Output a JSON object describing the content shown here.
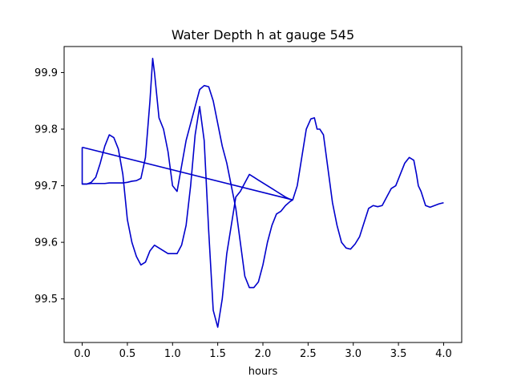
{
  "chart_data": {
    "type": "line",
    "title": "Water Depth h at gauge 545",
    "xlabel": "hours",
    "ylabel": "",
    "xlim": [
      -0.2,
      4.2
    ],
    "ylim": [
      99.423,
      99.946
    ],
    "xticks": [
      0.0,
      0.5,
      1.0,
      1.5,
      2.0,
      2.5,
      3.0,
      3.5,
      4.0
    ],
    "xtick_labels": [
      "0.0",
      "0.5",
      "1.0",
      "1.5",
      "2.0",
      "2.5",
      "3.0",
      "3.5",
      "4.0"
    ],
    "yticks": [
      99.5,
      99.6,
      99.7,
      99.8,
      99.9
    ],
    "ytick_labels": [
      "99.5",
      "99.6",
      "99.7",
      "99.8",
      "99.9"
    ],
    "grid": false,
    "legend": "none",
    "series_color": "#0000cc",
    "series": [
      {
        "segments": [
          {
            "x": [
              0.0,
              0.0,
              0.05,
              0.1,
              0.15,
              0.2,
              0.25,
              0.3,
              0.35,
              0.4,
              0.45,
              0.5,
              0.55,
              0.6,
              0.65,
              0.7,
              0.75,
              0.78,
              0.8,
              0.85,
              0.9,
              0.95,
              1.0,
              1.05,
              1.1,
              1.15,
              1.2,
              1.25,
              1.3,
              1.35,
              1.4,
              1.45,
              1.5,
              1.55,
              1.6,
              1.65,
              1.7,
              1.75,
              1.8,
              1.85,
              1.9,
              1.95,
              2.0,
              2.05,
              2.1,
              2.15,
              2.2,
              2.25,
              2.3,
              2.33,
              0.0
            ],
            "y": [
              99.768,
              99.703,
              99.703,
              99.704,
              99.704,
              99.704,
              99.704,
              99.705,
              99.705,
              99.705,
              99.705,
              99.706,
              99.708,
              99.709,
              99.713,
              99.75,
              99.85,
              99.925,
              99.9,
              99.82,
              99.8,
              99.76,
              99.7,
              99.69,
              99.735,
              99.78,
              99.81,
              99.84,
              99.87,
              99.877,
              99.875,
              99.85,
              99.81,
              99.77,
              99.74,
              99.7,
              99.66,
              99.6,
              99.54,
              99.52,
              99.52,
              99.53,
              99.56,
              99.6,
              99.63,
              99.65,
              99.655,
              99.665,
              99.672,
              99.675,
              99.768
            ]
          },
          {
            "x": [
              0.0,
              0.05,
              0.1,
              0.15,
              0.2,
              0.25,
              0.3,
              0.35,
              0.4,
              0.45,
              0.5,
              0.55,
              0.6,
              0.65,
              0.7,
              0.75,
              0.8,
              0.85,
              0.9,
              0.95,
              1.0,
              1.05,
              1.1,
              1.15,
              1.2,
              1.25,
              1.3,
              1.35,
              1.4,
              1.45,
              1.5,
              1.55,
              1.6,
              1.65,
              1.7,
              1.75,
              1.8,
              1.85,
              1.9,
              1.95,
              2.0,
              2.05,
              2.1,
              2.15,
              2.2,
              2.25,
              2.3,
              2.33
            ],
            "y": [
              99.703,
              99.703,
              99.706,
              99.715,
              99.74,
              99.77,
              99.79,
              99.785,
              99.765,
              99.72,
              99.64,
              99.6,
              99.575,
              99.56,
              99.565,
              99.585,
              99.595,
              99.59,
              99.585,
              99.58,
              99.58,
              99.58,
              99.595,
              99.63,
              99.7,
              99.79,
              99.84,
              99.78,
              99.62,
              99.48,
              99.45,
              99.5,
              99.58,
              99.63,
              99.68,
              99.69,
              99.705,
              99.72,
              99.715,
              99.71,
              99.705,
              99.7,
              99.695,
              99.69,
              99.685,
              99.68,
              99.676,
              99.675
            ]
          },
          {
            "x": [
              2.33,
              2.38,
              2.43,
              2.48,
              2.53,
              2.57,
              2.6,
              2.63,
              2.67,
              2.72,
              2.77,
              2.82,
              2.87,
              2.92,
              2.97,
              3.02,
              3.07,
              3.12,
              3.17,
              3.22,
              3.27,
              3.32,
              3.37,
              3.42,
              3.47,
              3.52,
              3.57,
              3.62,
              3.67,
              3.7,
              3.72,
              3.75,
              3.8,
              3.85,
              3.9,
              3.95,
              4.0
            ],
            "y": [
              99.675,
              99.7,
              99.75,
              99.8,
              99.818,
              99.82,
              99.8,
              99.8,
              99.79,
              99.73,
              99.67,
              99.63,
              99.6,
              99.59,
              99.588,
              99.597,
              99.61,
              99.635,
              99.66,
              99.665,
              99.663,
              99.665,
              99.68,
              99.695,
              99.7,
              99.72,
              99.74,
              99.75,
              99.745,
              99.72,
              99.7,
              99.69,
              99.665,
              99.662,
              99.665,
              99.668,
              99.67
            ]
          }
        ]
      }
    ]
  }
}
